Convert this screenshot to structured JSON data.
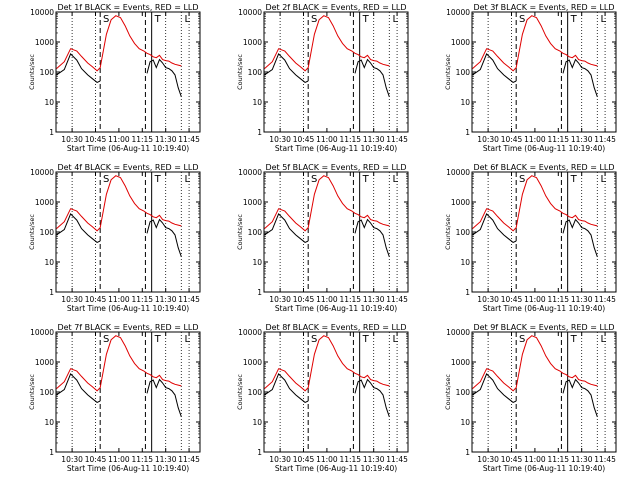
{
  "chart_data": {
    "type": "line",
    "ylabel": "Counts/sec",
    "xlabel": "Start Time (06-Aug-11 10:19:40)",
    "x_tick_labels": [
      "10:30",
      "10:45",
      "11:00",
      "11:15",
      "11:30",
      "11:45"
    ],
    "xlim": [
      "10:19:40",
      "11:52:00"
    ],
    "y_scale": "log",
    "ylim": [
      1,
      10000
    ],
    "y_tick_labels": [
      "1",
      "10",
      "100",
      "1000",
      "10000"
    ],
    "series_colors": {
      "events": "#000000",
      "lld": "#e00000"
    },
    "marker_labels": [
      "S",
      "T",
      "L"
    ],
    "panels": [
      {
        "title": "Det 1f BLACK = Events, RED = LLD"
      },
      {
        "title": "Det 2f BLACK = Events, RED = LLD"
      },
      {
        "title": "Det 3f BLACK = Events, RED = LLD"
      },
      {
        "title": "Det 4f BLACK = Events, RED = LLD"
      },
      {
        "title": "Det 5f BLACK = Events, RED = LLD"
      },
      {
        "title": "Det 6f BLACK = Events, RED = LLD"
      },
      {
        "title": "Det 7f BLACK = Events, RED = LLD"
      },
      {
        "title": "Det 8f BLACK = Events, RED = LLD"
      },
      {
        "title": "Det 9f BLACK = Events, RED = LLD"
      }
    ],
    "series": [
      {
        "x": [
          "10:20",
          "10:25",
          "10:29",
          "10:33",
          "10:36",
          "10:40",
          "10:43",
          "10:46",
          "10:48",
          "10:52",
          "10:55",
          "10:58",
          "11:01",
          "11:04",
          "11:07",
          "11:10",
          "11:13",
          "11:16",
          "11:18",
          "11:20",
          "11:22",
          "11:24",
          "11:26",
          "11:28",
          "11:30",
          "11:32",
          "11:34",
          "11:36",
          "11:38",
          "11:40"
        ],
        "events": [
          80,
          120,
          400,
          250,
          130,
          80,
          60,
          45,
          50,
          null,
          null,
          null,
          null,
          null,
          null,
          null,
          null,
          null,
          90,
          220,
          250,
          140,
          260,
          200,
          140,
          130,
          110,
          80,
          30,
          15
        ],
        "lld": [
          130,
          220,
          600,
          500,
          330,
          200,
          150,
          110,
          140,
          1800,
          5500,
          7500,
          6500,
          3500,
          1600,
          900,
          600,
          500,
          420,
          380,
          320,
          300,
          360,
          260,
          240,
          230,
          200,
          180,
          170,
          160
        ]
      }
    ]
  }
}
